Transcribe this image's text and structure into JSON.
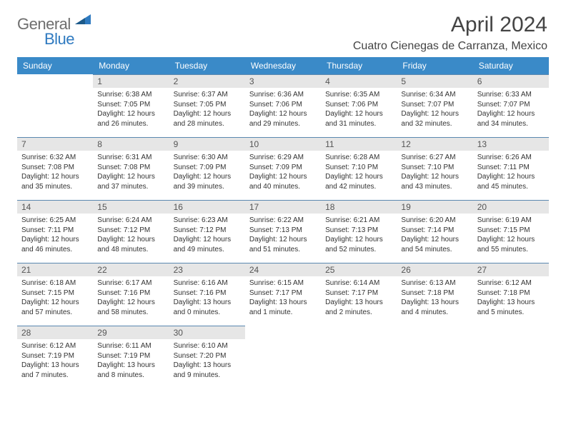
{
  "logo": {
    "text_a": "General",
    "text_b": "Blue"
  },
  "title": "April 2024",
  "location": "Cuatro Cienegas de Carranza, Mexico",
  "colors": {
    "header_bg": "#3a8ac8",
    "header_fg": "#ffffff",
    "daynum_bg": "#e6e6e6",
    "daynum_fg": "#555555",
    "day_border": "#5a88b0",
    "logo_gray": "#6e6e6e",
    "logo_blue": "#2f7ac0"
  },
  "weekdays": [
    "Sunday",
    "Monday",
    "Tuesday",
    "Wednesday",
    "Thursday",
    "Friday",
    "Saturday"
  ],
  "grid": [
    [
      {
        "day": null
      },
      {
        "day": 1,
        "sunrise": "6:38 AM",
        "sunset": "7:05 PM",
        "daylight": "12 hours and 26 minutes."
      },
      {
        "day": 2,
        "sunrise": "6:37 AM",
        "sunset": "7:05 PM",
        "daylight": "12 hours and 28 minutes."
      },
      {
        "day": 3,
        "sunrise": "6:36 AM",
        "sunset": "7:06 PM",
        "daylight": "12 hours and 29 minutes."
      },
      {
        "day": 4,
        "sunrise": "6:35 AM",
        "sunset": "7:06 PM",
        "daylight": "12 hours and 31 minutes."
      },
      {
        "day": 5,
        "sunrise": "6:34 AM",
        "sunset": "7:07 PM",
        "daylight": "12 hours and 32 minutes."
      },
      {
        "day": 6,
        "sunrise": "6:33 AM",
        "sunset": "7:07 PM",
        "daylight": "12 hours and 34 minutes."
      }
    ],
    [
      {
        "day": 7,
        "sunrise": "6:32 AM",
        "sunset": "7:08 PM",
        "daylight": "12 hours and 35 minutes."
      },
      {
        "day": 8,
        "sunrise": "6:31 AM",
        "sunset": "7:08 PM",
        "daylight": "12 hours and 37 minutes."
      },
      {
        "day": 9,
        "sunrise": "6:30 AM",
        "sunset": "7:09 PM",
        "daylight": "12 hours and 39 minutes."
      },
      {
        "day": 10,
        "sunrise": "6:29 AM",
        "sunset": "7:09 PM",
        "daylight": "12 hours and 40 minutes."
      },
      {
        "day": 11,
        "sunrise": "6:28 AM",
        "sunset": "7:10 PM",
        "daylight": "12 hours and 42 minutes."
      },
      {
        "day": 12,
        "sunrise": "6:27 AM",
        "sunset": "7:10 PM",
        "daylight": "12 hours and 43 minutes."
      },
      {
        "day": 13,
        "sunrise": "6:26 AM",
        "sunset": "7:11 PM",
        "daylight": "12 hours and 45 minutes."
      }
    ],
    [
      {
        "day": 14,
        "sunrise": "6:25 AM",
        "sunset": "7:11 PM",
        "daylight": "12 hours and 46 minutes."
      },
      {
        "day": 15,
        "sunrise": "6:24 AM",
        "sunset": "7:12 PM",
        "daylight": "12 hours and 48 minutes."
      },
      {
        "day": 16,
        "sunrise": "6:23 AM",
        "sunset": "7:12 PM",
        "daylight": "12 hours and 49 minutes."
      },
      {
        "day": 17,
        "sunrise": "6:22 AM",
        "sunset": "7:13 PM",
        "daylight": "12 hours and 51 minutes."
      },
      {
        "day": 18,
        "sunrise": "6:21 AM",
        "sunset": "7:13 PM",
        "daylight": "12 hours and 52 minutes."
      },
      {
        "day": 19,
        "sunrise": "6:20 AM",
        "sunset": "7:14 PM",
        "daylight": "12 hours and 54 minutes."
      },
      {
        "day": 20,
        "sunrise": "6:19 AM",
        "sunset": "7:15 PM",
        "daylight": "12 hours and 55 minutes."
      }
    ],
    [
      {
        "day": 21,
        "sunrise": "6:18 AM",
        "sunset": "7:15 PM",
        "daylight": "12 hours and 57 minutes."
      },
      {
        "day": 22,
        "sunrise": "6:17 AM",
        "sunset": "7:16 PM",
        "daylight": "12 hours and 58 minutes."
      },
      {
        "day": 23,
        "sunrise": "6:16 AM",
        "sunset": "7:16 PM",
        "daylight": "13 hours and 0 minutes."
      },
      {
        "day": 24,
        "sunrise": "6:15 AM",
        "sunset": "7:17 PM",
        "daylight": "13 hours and 1 minute."
      },
      {
        "day": 25,
        "sunrise": "6:14 AM",
        "sunset": "7:17 PM",
        "daylight": "13 hours and 2 minutes."
      },
      {
        "day": 26,
        "sunrise": "6:13 AM",
        "sunset": "7:18 PM",
        "daylight": "13 hours and 4 minutes."
      },
      {
        "day": 27,
        "sunrise": "6:12 AM",
        "sunset": "7:18 PM",
        "daylight": "13 hours and 5 minutes."
      }
    ],
    [
      {
        "day": 28,
        "sunrise": "6:12 AM",
        "sunset": "7:19 PM",
        "daylight": "13 hours and 7 minutes."
      },
      {
        "day": 29,
        "sunrise": "6:11 AM",
        "sunset": "7:19 PM",
        "daylight": "13 hours and 8 minutes."
      },
      {
        "day": 30,
        "sunrise": "6:10 AM",
        "sunset": "7:20 PM",
        "daylight": "13 hours and 9 minutes."
      },
      {
        "day": null
      },
      {
        "day": null
      },
      {
        "day": null
      },
      {
        "day": null
      }
    ]
  ],
  "labels": {
    "sunrise": "Sunrise:",
    "sunset": "Sunset:",
    "daylight": "Daylight:"
  }
}
